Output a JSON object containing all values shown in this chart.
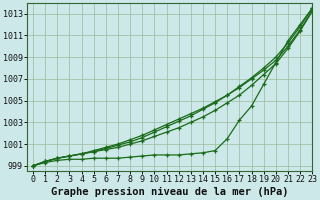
{
  "background_color": "#cce8e8",
  "grid_color": "#99bb99",
  "line_color": "#1a6b1a",
  "xlim": [
    -0.5,
    23
  ],
  "ylim": [
    998.5,
    1014.0
  ],
  "yticks": [
    999,
    1001,
    1003,
    1005,
    1007,
    1009,
    1011,
    1013
  ],
  "xticks": [
    0,
    1,
    2,
    3,
    4,
    5,
    6,
    7,
    8,
    9,
    10,
    11,
    12,
    13,
    14,
    15,
    16,
    17,
    18,
    19,
    20,
    21,
    22,
    23
  ],
  "xlabel": "Graphe pression niveau de la mer (hPa)",
  "series1": [
    999.0,
    999.4,
    999.7,
    999.9,
    1000.1,
    1000.3,
    1000.5,
    1000.7,
    1001.0,
    1001.3,
    1001.7,
    1002.1,
    1002.5,
    1003.0,
    1003.5,
    1004.1,
    1004.8,
    1005.5,
    1006.4,
    1007.4,
    1008.4,
    1009.8,
    1011.4,
    1013.2
  ],
  "series2": [
    999.0,
    999.4,
    999.7,
    999.9,
    1000.1,
    1000.4,
    1000.7,
    1001.0,
    1001.4,
    1001.8,
    1002.3,
    1002.8,
    1003.3,
    1003.8,
    1004.3,
    1004.9,
    1005.5,
    1006.2,
    1007.0,
    1007.8,
    1008.7,
    1010.0,
    1011.5,
    1013.3
  ],
  "series3": [
    999.0,
    999.4,
    999.7,
    999.9,
    1000.1,
    1000.3,
    1000.6,
    1000.9,
    1001.2,
    1001.6,
    1002.1,
    1002.6,
    1003.1,
    1003.6,
    1004.2,
    1004.8,
    1005.5,
    1006.3,
    1007.1,
    1008.0,
    1009.0,
    1010.3,
    1011.8,
    1013.5
  ],
  "series4": [
    999.0,
    999.3,
    999.5,
    999.6,
    999.6,
    999.7,
    999.7,
    999.7,
    999.8,
    999.9,
    1000.0,
    1000.0,
    1000.0,
    1000.1,
    1000.2,
    1000.4,
    1001.5,
    1003.2,
    1004.5,
    1006.5,
    1008.5,
    1010.5,
    1012.0,
    1013.5
  ],
  "tick_fontsize": 6,
  "label_fontsize": 7.5
}
